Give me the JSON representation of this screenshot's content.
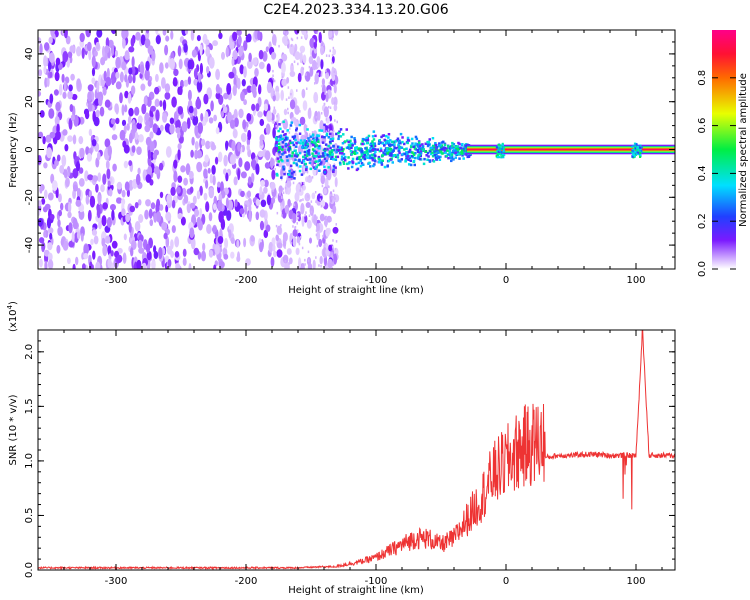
{
  "title": "C2E4.2023.334.13.20.G06",
  "colorbar": {
    "label": "Normalized spectral amplitude",
    "ticks": [
      "0.0",
      "0.2",
      "0.4",
      "0.6",
      "0.8"
    ],
    "tick_values": [
      0.0,
      0.2,
      0.4,
      0.6,
      0.8
    ],
    "range": [
      0,
      1
    ]
  },
  "chart_data": [
    {
      "type": "heatmap",
      "title": "",
      "xlabel": "Height of straight line (km)",
      "ylabel": "Frequency (Hz)",
      "xlim": [
        -360,
        130
      ],
      "ylim": [
        -50,
        50
      ],
      "x_ticks": [
        -300,
        -200,
        -100,
        0,
        100
      ],
      "x_tick_labels": [
        "-300",
        "-200",
        "-100",
        "0",
        "100"
      ],
      "y_ticks": [
        -40,
        -20,
        0,
        20,
        40
      ],
      "y_tick_labels": [
        "-40",
        "-20",
        "0",
        "20",
        "40"
      ],
      "colorscale": "rainbow (white-purple-blue-cyan-green-yellow-orange-red)",
      "regions": [
        {
          "x_range": [
            -360,
            -130
          ],
          "freq_range": [
            -50,
            50
          ],
          "amplitude": 0.05,
          "description": "broadband noise"
        },
        {
          "x_range": [
            -175,
            -30
          ],
          "freq_range": [
            -10,
            10
          ],
          "amplitude": 0.3,
          "description": "signal emerging near 0 Hz"
        },
        {
          "x_range": [
            -30,
            130
          ],
          "freq_range": [
            -1,
            1
          ],
          "amplitude": 0.95,
          "description": "strong narrow line at 0 Hz"
        }
      ]
    },
    {
      "type": "line",
      "title": "",
      "xlabel": "Height of straight line (km)",
      "ylabel": "SNR (10 * v/v)",
      "y_scale_label": "(x10",
      "y_scale_exp": "4",
      "xlim": [
        -360,
        130
      ],
      "ylim": [
        0,
        2.2
      ],
      "x_ticks": [
        -300,
        -200,
        -100,
        0,
        100
      ],
      "x_tick_labels": [
        "-300",
        "-200",
        "-100",
        "0",
        "100"
      ],
      "y_ticks": [
        0.0,
        0.5,
        1.0,
        1.5,
        2.0
      ],
      "y_tick_labels": [
        "0.0",
        "0.5",
        "1.0",
        "1.5",
        "2.0"
      ],
      "series_color": "#ee3333",
      "series": [
        {
          "x": [
            -360,
            -300,
            -250,
            -200,
            -160,
            -140,
            -130,
            -120,
            -110,
            -100,
            -90,
            -80,
            -70,
            -60,
            -50,
            -40,
            -30,
            -20,
            -10,
            0,
            10,
            20,
            30,
            40,
            50,
            60,
            70,
            80,
            90,
            100,
            105,
            110,
            115,
            120,
            130
          ],
          "y": [
            0.02,
            0.02,
            0.02,
            0.02,
            0.02,
            0.03,
            0.03,
            0.05,
            0.07,
            0.1,
            0.15,
            0.2,
            0.25,
            0.25,
            0.2,
            0.25,
            0.4,
            0.55,
            0.75,
            0.85,
            0.95,
            1.0,
            1.03,
            1.05,
            1.05,
            1.06,
            1.06,
            1.05,
            1.05,
            1.05,
            2.2,
            1.05,
            1.05,
            1.05,
            1.05
          ]
        }
      ]
    }
  ]
}
